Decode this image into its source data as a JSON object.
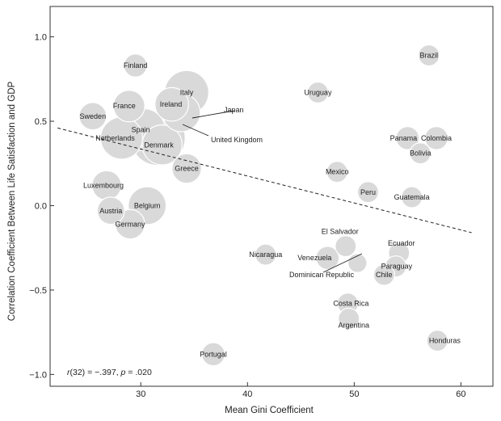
{
  "chart_data": {
    "type": "scatter",
    "title": "",
    "xlabel": "Mean Gini Coefficient",
    "ylabel": "Correlation Coefficient Between Life Satisfaction and GDP",
    "xlim": [
      21.5,
      63
    ],
    "ylim": [
      -1.07,
      1.18
    ],
    "xticks": [
      30,
      40,
      50,
      60
    ],
    "yticks": [
      1.0,
      0.5,
      0.0,
      -0.5,
      -1.0
    ],
    "ytick_labels": [
      "1.0",
      "0.5",
      "0.0",
      "−0.5",
      "−1.0"
    ],
    "xtick_labels": [
      "30",
      "40",
      "50",
      "60"
    ],
    "annotation": {
      "r_text": "r(32) = −.397, p = .020"
    },
    "regression_line": {
      "x1": 22.2,
      "y1": 0.46,
      "x2": 61.0,
      "y2": -0.16,
      "style": "dashed"
    },
    "points": [
      {
        "country": "Finland",
        "x": 29.5,
        "y": 0.83,
        "size": 1.1,
        "label": "Finland"
      },
      {
        "country": "Italy",
        "x": 34.3,
        "y": 0.67,
        "size": 2.1,
        "label": "Italy"
      },
      {
        "country": "Ireland",
        "x": 32.9,
        "y": 0.6,
        "size": 1.6,
        "label": "Ireland"
      },
      {
        "country": "France",
        "x": 28.9,
        "y": 0.59,
        "size": 1.5,
        "label": "France"
      },
      {
        "country": "Sweden",
        "x": 25.5,
        "y": 0.53,
        "size": 1.3,
        "label": "Sweden"
      },
      {
        "country": "Japan",
        "x": 33.8,
        "y": 0.55,
        "size": 1.8,
        "label": "Japan"
      },
      {
        "country": "Spain",
        "x": 30.3,
        "y": 0.45,
        "size": 2.0,
        "label": "Spain"
      },
      {
        "country": "Netherlands",
        "x": 28.2,
        "y": 0.4,
        "size": 2.0,
        "label": "Netherlands"
      },
      {
        "country": "United Kingdom",
        "x": 31.6,
        "y": 0.4,
        "size": 2.6,
        "label": "United Kingdom"
      },
      {
        "country": "Denmark",
        "x": 32.0,
        "y": 0.36,
        "size": 1.9,
        "label": "Denmark"
      },
      {
        "country": "Greece",
        "x": 34.3,
        "y": 0.22,
        "size": 1.4,
        "label": "Greece"
      },
      {
        "country": "Luxembourg",
        "x": 26.8,
        "y": 0.12,
        "size": 1.4,
        "label": "Luxembourg"
      },
      {
        "country": "Austria",
        "x": 27.2,
        "y": -0.03,
        "size": 1.3,
        "label": "Austria"
      },
      {
        "country": "Belgium",
        "x": 30.6,
        "y": 0.0,
        "size": 1.8,
        "label": "Belgium"
      },
      {
        "country": "Germany",
        "x": 29.0,
        "y": -0.11,
        "size": 1.4,
        "label": "Germany"
      },
      {
        "country": "Portugal",
        "x": 36.8,
        "y": -0.88,
        "size": 1.1,
        "label": "Portugal"
      },
      {
        "country": "Uruguay",
        "x": 46.6,
        "y": 0.67,
        "size": 1.0,
        "label": "Uruguay"
      },
      {
        "country": "Brazil",
        "x": 57.0,
        "y": 0.89,
        "size": 1.0,
        "label": "Brazil"
      },
      {
        "country": "Panama",
        "x": 55.0,
        "y": 0.4,
        "size": 1.1,
        "label": "Panama"
      },
      {
        "country": "Colombia",
        "x": 57.7,
        "y": 0.4,
        "size": 1.1,
        "label": "Colombia"
      },
      {
        "country": "Bolivia",
        "x": 56.2,
        "y": 0.31,
        "size": 1.0,
        "label": "Bolivia"
      },
      {
        "country": "Mexico",
        "x": 48.4,
        "y": 0.2,
        "size": 1.0,
        "label": "Mexico"
      },
      {
        "country": "Peru",
        "x": 51.3,
        "y": 0.08,
        "size": 1.0,
        "label": "Peru"
      },
      {
        "country": "Guatemala",
        "x": 55.4,
        "y": 0.05,
        "size": 1.0,
        "label": "Guatemala"
      },
      {
        "country": "Nicaragua",
        "x": 41.7,
        "y": -0.29,
        "size": 1.0,
        "label": "Nicaragua"
      },
      {
        "country": "El Salvador",
        "x": 49.2,
        "y": -0.24,
        "size": 1.0,
        "label": "El Salvador"
      },
      {
        "country": "Venezuela",
        "x": 47.5,
        "y": -0.31,
        "size": 1.1,
        "label": "Venezuela"
      },
      {
        "country": "Dominican Republic",
        "x": 50.3,
        "y": -0.34,
        "size": 0.9,
        "label": "Dominican Republic"
      },
      {
        "country": "Ecuador",
        "x": 54.2,
        "y": -0.28,
        "size": 1.0,
        "label": "Ecuador"
      },
      {
        "country": "Paraguay",
        "x": 53.9,
        "y": -0.36,
        "size": 1.0,
        "label": "Paraguay"
      },
      {
        "country": "Chile",
        "x": 52.8,
        "y": -0.41,
        "size": 1.0,
        "label": "Chile"
      },
      {
        "country": "Costa Rica",
        "x": 49.4,
        "y": -0.58,
        "size": 1.0,
        "label": "Costa Rica"
      },
      {
        "country": "Argentina",
        "x": 49.5,
        "y": -0.67,
        "size": 1.0,
        "label": "Argentina"
      },
      {
        "country": "Honduras",
        "x": 57.8,
        "y": -0.8,
        "size": 1.0,
        "label": "Honduras"
      }
    ]
  },
  "colors": {
    "bubble_fill": "#d9d9d9",
    "bubble_stroke": "#ffffff",
    "axis": "#333333",
    "text": "#222222"
  }
}
